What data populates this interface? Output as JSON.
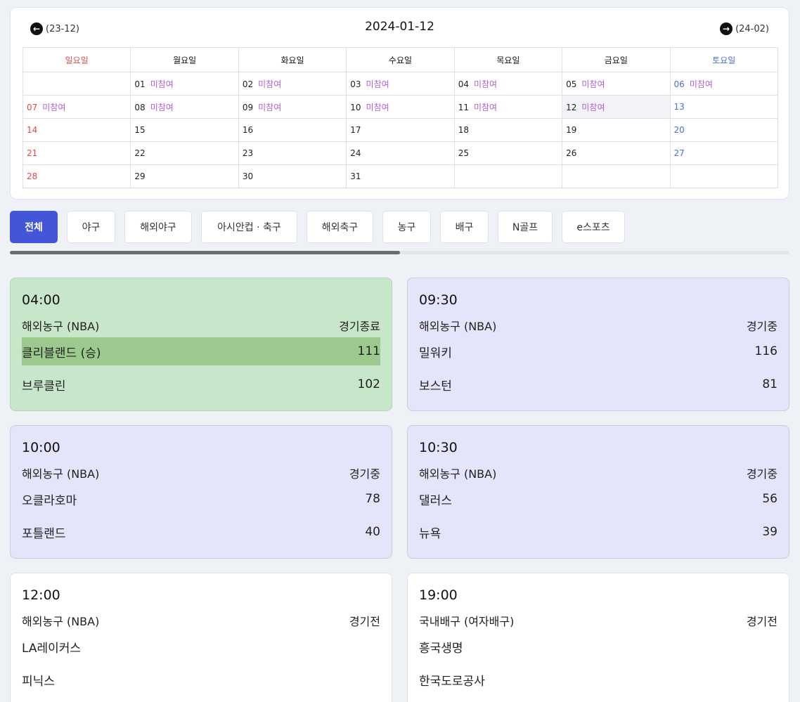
{
  "calendar": {
    "title": "2024-01-12",
    "prev_label": "(23-12)",
    "next_label": "(24-02)",
    "status_text": "미참여",
    "weekdays": [
      "일요일",
      "월요일",
      "화요일",
      "수요일",
      "목요일",
      "금요일",
      "토요일"
    ],
    "weeks": [
      [
        "",
        "01",
        "02",
        "03",
        "04",
        "05",
        "06"
      ],
      [
        "07",
        "08",
        "09",
        "10",
        "11",
        "12",
        "13"
      ],
      [
        "14",
        "15",
        "16",
        "17",
        "18",
        "19",
        "20"
      ],
      [
        "21",
        "22",
        "23",
        "24",
        "25",
        "26",
        "27"
      ],
      [
        "28",
        "29",
        "30",
        "31",
        "",
        "",
        ""
      ]
    ],
    "participation_days": [
      "01",
      "02",
      "03",
      "04",
      "05",
      "06",
      "07",
      "08",
      "09",
      "10",
      "11",
      "12"
    ],
    "today": "12",
    "colors": {
      "sunday": "#e04b4b",
      "saturday": "#4a6fd8",
      "status": "#b45cd8"
    }
  },
  "tabs": [
    "전체",
    "야구",
    "해외야구",
    "아시안컵 · 축구",
    "해외축구",
    "농구",
    "배구",
    "N골프",
    "e스포츠"
  ],
  "active_tab": "전체",
  "matches": [
    {
      "time": "04:00",
      "league": "해외농구 (NBA)",
      "status": "경기종료",
      "state": "ended",
      "teams": [
        {
          "name": "클리블랜드 (승)",
          "score": "111",
          "winner": true
        },
        {
          "name": "브루클린",
          "score": "102",
          "winner": false
        }
      ]
    },
    {
      "time": "09:30",
      "league": "해외농구 (NBA)",
      "status": "경기중",
      "state": "live",
      "teams": [
        {
          "name": "밀워키",
          "score": "116",
          "winner": false
        },
        {
          "name": "보스턴",
          "score": "81",
          "winner": false
        }
      ]
    },
    {
      "time": "10:00",
      "league": "해외농구 (NBA)",
      "status": "경기중",
      "state": "live",
      "teams": [
        {
          "name": "오클라호마",
          "score": "78",
          "winner": false
        },
        {
          "name": "포틀랜드",
          "score": "40",
          "winner": false
        }
      ]
    },
    {
      "time": "10:30",
      "league": "해외농구 (NBA)",
      "status": "경기중",
      "state": "live",
      "teams": [
        {
          "name": "댈러스",
          "score": "56",
          "winner": false
        },
        {
          "name": "뉴욕",
          "score": "39",
          "winner": false
        }
      ]
    },
    {
      "time": "12:00",
      "league": "해외농구 (NBA)",
      "status": "경기전",
      "state": "pre",
      "teams": [
        {
          "name": "LA레이커스",
          "score": "",
          "winner": false
        },
        {
          "name": "피닉스",
          "score": "",
          "winner": false
        }
      ]
    },
    {
      "time": "19:00",
      "league": "국내배구 (여자배구)",
      "status": "경기전",
      "state": "pre",
      "teams": [
        {
          "name": "흥국생명",
          "score": "",
          "winner": false
        },
        {
          "name": "한국도로공사",
          "score": "",
          "winner": false
        }
      ]
    }
  ],
  "tab_scroll": {
    "visible_fraction": 0.5
  },
  "icons": {
    "prev": "arrow-left-circle-icon",
    "next": "arrow-right-circle-icon"
  }
}
